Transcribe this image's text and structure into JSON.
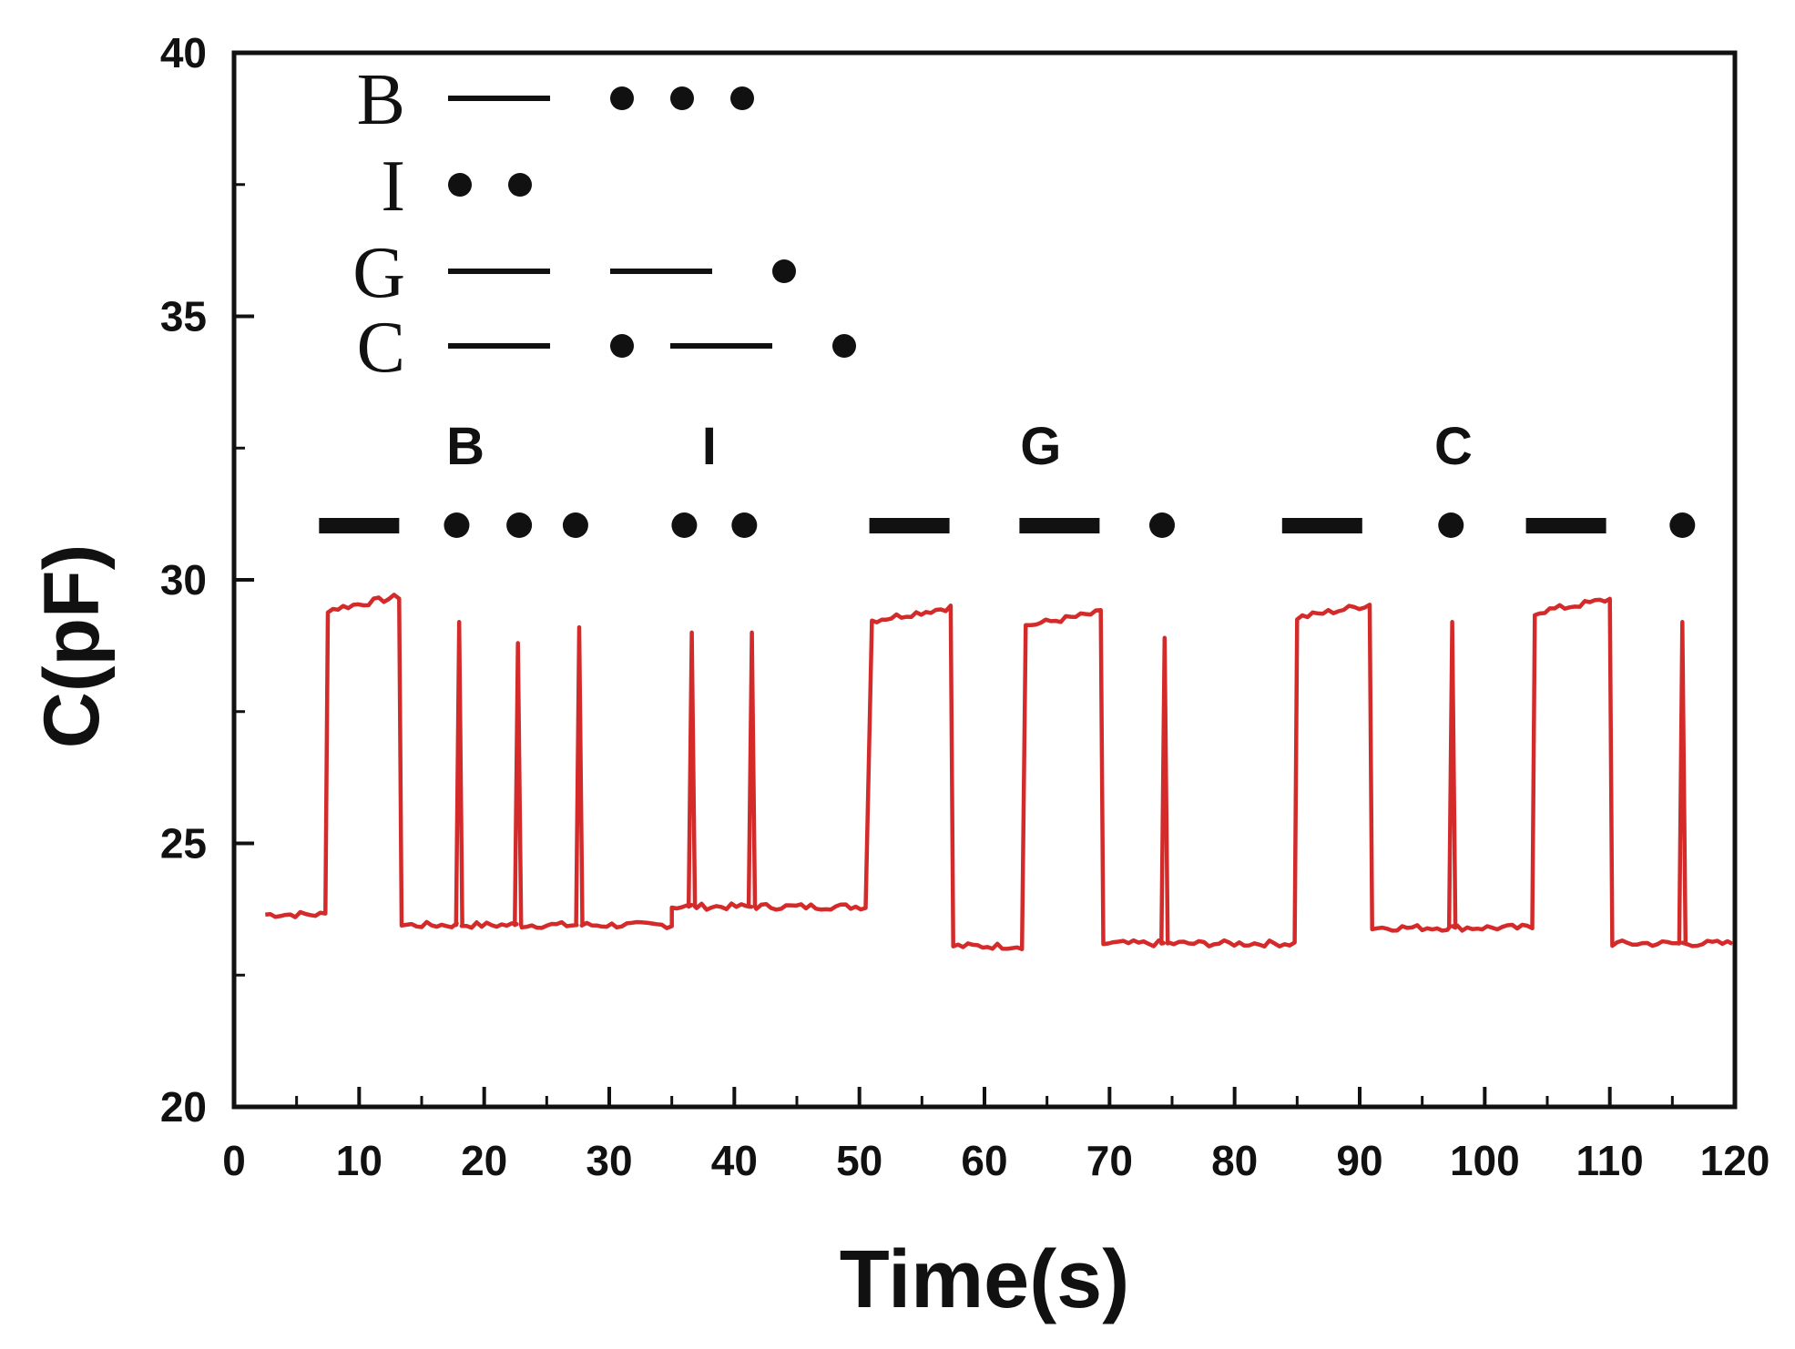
{
  "chart_data": {
    "type": "line",
    "xlabel": "Time(s)",
    "ylabel": "C(pF)",
    "xlim": [
      0,
      120
    ],
    "ylim": [
      20,
      40
    ],
    "x_ticks": [
      0,
      10,
      20,
      30,
      40,
      50,
      60,
      70,
      80,
      90,
      100,
      110,
      120
    ],
    "y_ticks": [
      20,
      25,
      30,
      35,
      40
    ],
    "x_tick_labels": [
      "0",
      "10",
      "20",
      "30",
      "40",
      "50",
      "60",
      "70",
      "80",
      "90",
      "100",
      "110",
      "120"
    ],
    "y_tick_labels": [
      "20",
      "25",
      "30",
      "35",
      "40"
    ],
    "grid": false,
    "series_color": "#d42a2a",
    "legend": {
      "placement": "top-left",
      "entries": [
        {
          "letter": "B",
          "code": [
            "dash",
            "dot",
            "dot",
            "dot"
          ]
        },
        {
          "letter": "I",
          "code": [
            "dot",
            "dot"
          ]
        },
        {
          "letter": "G",
          "code": [
            "dash",
            "dash",
            "dot"
          ]
        },
        {
          "letter": "C",
          "code": [
            "dash",
            "dot",
            "dash",
            "dot"
          ]
        }
      ]
    },
    "code_labels": [
      {
        "letter": "B",
        "x": 18.5
      },
      {
        "letter": "I",
        "x": 38
      },
      {
        "letter": "G",
        "x": 64.5
      },
      {
        "letter": "C",
        "x": 97.5
      }
    ],
    "code_symbols": [
      {
        "kind": "dash",
        "x": 10
      },
      {
        "kind": "dot",
        "x": 17.8
      },
      {
        "kind": "dot",
        "x": 22.8
      },
      {
        "kind": "dot",
        "x": 27.3
      },
      {
        "kind": "dot",
        "x": 36
      },
      {
        "kind": "dot",
        "x": 40.8
      },
      {
        "kind": "dash",
        "x": 54
      },
      {
        "kind": "dash",
        "x": 66
      },
      {
        "kind": "dot",
        "x": 74.2
      },
      {
        "kind": "dash",
        "x": 87
      },
      {
        "kind": "dot",
        "x": 97.3
      },
      {
        "kind": "dash",
        "x": 106.5
      },
      {
        "kind": "dot",
        "x": 115.8
      }
    ],
    "baselines": [
      {
        "x0": 2.5,
        "x1": 7.3,
        "y": 23.65
      },
      {
        "x0": 13.4,
        "x1": 35,
        "y": 23.45
      },
      {
        "x0": 35,
        "x1": 50.5,
        "y": 23.8
      },
      {
        "x0": 57.5,
        "x1": 63,
        "y": 23.05
      },
      {
        "x0": 69.5,
        "x1": 84.8,
        "y": 23.1
      },
      {
        "x0": 91,
        "x1": 103.8,
        "y": 23.4
      },
      {
        "x0": 110.2,
        "x1": 119.8,
        "y": 23.1
      }
    ],
    "plateaus": [
      {
        "x0": 7.5,
        "x1": 13.2,
        "y": 29.55
      },
      {
        "x0": 51,
        "x1": 57.3,
        "y": 29.35
      },
      {
        "x0": 63.3,
        "x1": 69.3,
        "y": 29.25
      },
      {
        "x0": 85,
        "x1": 90.8,
        "y": 29.4
      },
      {
        "x0": 104,
        "x1": 110,
        "y": 29.5
      }
    ],
    "spikes": [
      {
        "x": 18,
        "y": 29.2
      },
      {
        "x": 22.7,
        "y": 28.8
      },
      {
        "x": 27.6,
        "y": 29.1
      },
      {
        "x": 36.6,
        "y": 29.0
      },
      {
        "x": 41.4,
        "y": 29.0
      },
      {
        "x": 74.4,
        "y": 28.9
      },
      {
        "x": 97.4,
        "y": 29.2
      },
      {
        "x": 115.8,
        "y": 29.2
      }
    ]
  }
}
